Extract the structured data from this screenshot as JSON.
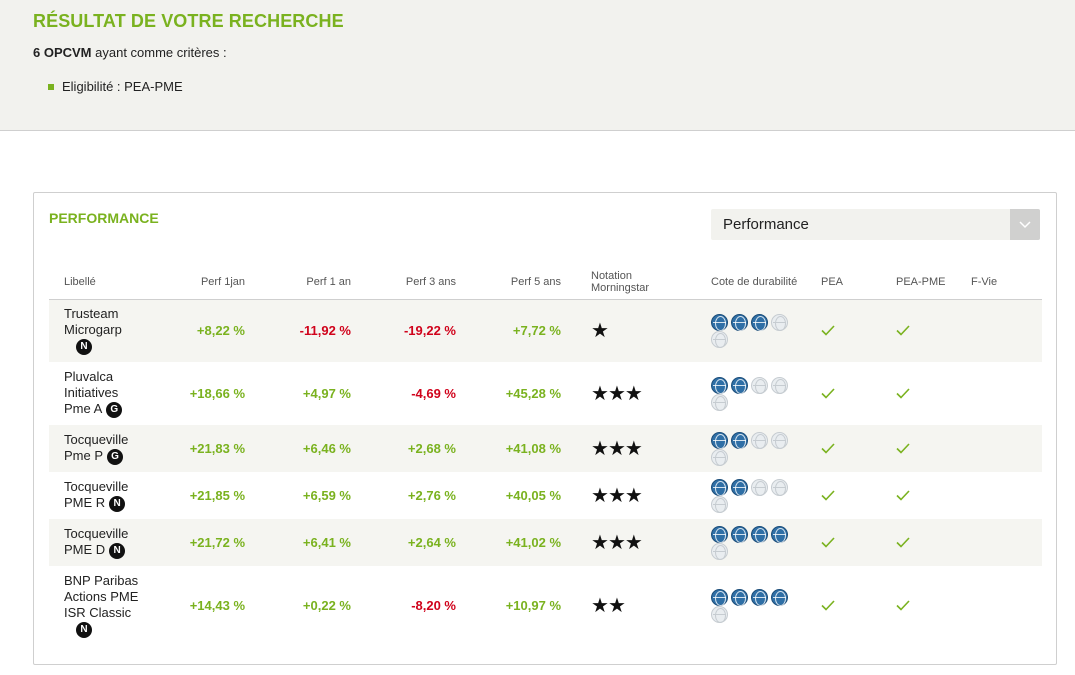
{
  "header": {
    "title": "RÉSULTAT DE VOTRE RECHERCHE",
    "count_bold": "6 OPCVM",
    "count_rest": " ayant comme critères :",
    "criterion": "Eligibilité : PEA-PME"
  },
  "panel": {
    "title": "PERFORMANCE",
    "select_value": "Performance"
  },
  "columns": {
    "libelle": "Libellé",
    "perf_1jan": "Perf 1jan",
    "perf_1an": "Perf 1 an",
    "perf_3ans": "Perf 3 ans",
    "perf_5ans": "Perf 5 ans",
    "notation_1": "Notation",
    "notation_2": "Morningstar",
    "cote": "Cote de durabilité",
    "pea": "PEA",
    "pea_pme": "PEA-PME",
    "fvie": "F-Vie"
  },
  "rows": [
    {
      "lines": [
        "Trusteam",
        "Microgarp"
      ],
      "badge": "N",
      "badge_block": true,
      "perf_1jan": "+8,22 %",
      "perf_1jan_sign": "pos",
      "perf_1an": "-11,92 %",
      "perf_1an_sign": "neg",
      "perf_3ans": "-19,22 %",
      "perf_3ans_sign": "neg",
      "perf_5ans": "+7,72 %",
      "perf_5ans_sign": "pos",
      "stars": 1,
      "globes": 3,
      "pea": true,
      "pea_pme": true
    },
    {
      "lines": [
        "Pluvalca",
        "Initiatives",
        "Pme A"
      ],
      "badge": "G",
      "badge_block": false,
      "perf_1jan": "+18,66 %",
      "perf_1jan_sign": "pos",
      "perf_1an": "+4,97 %",
      "perf_1an_sign": "pos",
      "perf_3ans": "-4,69 %",
      "perf_3ans_sign": "neg",
      "perf_5ans": "+45,28 %",
      "perf_5ans_sign": "pos",
      "stars": 3,
      "globes": 2,
      "pea": true,
      "pea_pme": true
    },
    {
      "lines": [
        "Tocqueville",
        "Pme P"
      ],
      "badge": "G",
      "badge_block": false,
      "perf_1jan": "+21,83 %",
      "perf_1jan_sign": "pos",
      "perf_1an": "+6,46 %",
      "perf_1an_sign": "pos",
      "perf_3ans": "+2,68 %",
      "perf_3ans_sign": "pos",
      "perf_5ans": "+41,08 %",
      "perf_5ans_sign": "pos",
      "stars": 3,
      "globes": 2,
      "pea": true,
      "pea_pme": true
    },
    {
      "lines": [
        "Tocqueville",
        "PME R"
      ],
      "badge": "N",
      "badge_block": false,
      "perf_1jan": "+21,85 %",
      "perf_1jan_sign": "pos",
      "perf_1an": "+6,59 %",
      "perf_1an_sign": "pos",
      "perf_3ans": "+2,76 %",
      "perf_3ans_sign": "pos",
      "perf_5ans": "+40,05 %",
      "perf_5ans_sign": "pos",
      "stars": 3,
      "globes": 2,
      "pea": true,
      "pea_pme": true
    },
    {
      "lines": [
        "Tocqueville",
        "PME D"
      ],
      "badge": "N",
      "badge_block": false,
      "perf_1jan": "+21,72 %",
      "perf_1jan_sign": "pos",
      "perf_1an": "+6,41 %",
      "perf_1an_sign": "pos",
      "perf_3ans": "+2,64 %",
      "perf_3ans_sign": "pos",
      "perf_5ans": "+41,02 %",
      "perf_5ans_sign": "pos",
      "stars": 3,
      "globes": 4,
      "pea": true,
      "pea_pme": true
    },
    {
      "lines": [
        "BNP Paribas",
        "Actions PME",
        "ISR Classic"
      ],
      "badge": "N",
      "badge_block": true,
      "perf_1jan": "+14,43 %",
      "perf_1jan_sign": "pos",
      "perf_1an": "+0,22 %",
      "perf_1an_sign": "pos",
      "perf_3ans": "-8,20 %",
      "perf_3ans_sign": "neg",
      "perf_5ans": "+10,97 %",
      "perf_5ans_sign": "pos",
      "stars": 2,
      "globes": 4,
      "pea": true,
      "pea_pme": true
    }
  ],
  "icons": {
    "star": "star-icon",
    "globe": "globe-icon",
    "check": "check-icon",
    "dropdown": "chevron-down-icon"
  },
  "colors": {
    "accent": "#7ab21f",
    "negative": "#d0021b",
    "globe_on": "#2f6fa6"
  }
}
